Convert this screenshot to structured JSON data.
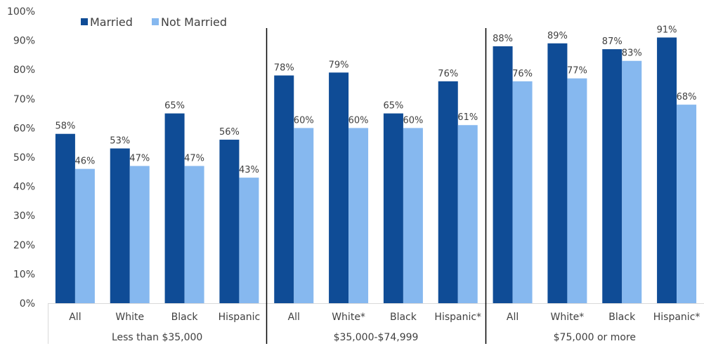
{
  "chart_data": {
    "type": "bar",
    "title": "",
    "xlabel": "",
    "ylabel": "",
    "ylim": [
      0,
      100
    ],
    "y_ticks": [
      "0%",
      "10%",
      "20%",
      "30%",
      "40%",
      "50%",
      "60%",
      "70%",
      "80%",
      "90%",
      "100%"
    ],
    "grid": false,
    "legend_position": "top-left",
    "groups": [
      {
        "label": "Less than $35,000",
        "categories": [
          "All",
          "White",
          "Black",
          "Hispanic"
        ]
      },
      {
        "label": "$35,000-$74,999",
        "categories": [
          "All",
          "White*",
          "Black",
          "Hispanic*"
        ]
      },
      {
        "label": "$75,000 or more",
        "categories": [
          "All",
          "White*",
          "Black",
          "Hispanic*"
        ]
      }
    ],
    "series": [
      {
        "name": "Married",
        "color": "#0f4c96",
        "values": [
          58,
          53,
          65,
          56,
          78,
          79,
          65,
          76,
          88,
          89,
          87,
          91
        ],
        "labels": [
          "58%",
          "53%",
          "65%",
          "56%",
          "78%",
          "79%",
          "65%",
          "76%",
          "88%",
          "89%",
          "87%",
          "91%"
        ]
      },
      {
        "name": "Not Married",
        "color": "#86b8ef",
        "values": [
          46,
          47,
          47,
          43,
          60,
          60,
          60,
          61,
          76,
          77,
          83,
          68
        ],
        "labels": [
          "46%",
          "47%",
          "47%",
          "43%",
          "60%",
          "60%",
          "60%",
          "61%",
          "76%",
          "77%",
          "83%",
          "68%"
        ]
      }
    ]
  }
}
